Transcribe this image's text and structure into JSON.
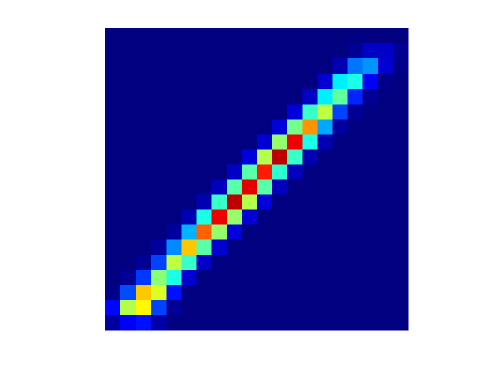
{
  "chart_data": {
    "type": "heatmap",
    "colormap": "jet",
    "zlim": [
      0,
      100
    ],
    "values": [
      [
        0,
        0,
        0,
        0,
        0,
        0,
        0,
        0,
        0,
        0,
        0,
        0,
        0,
        0,
        0,
        0,
        0,
        0,
        0,
        0
      ],
      [
        0,
        0,
        0,
        0,
        0,
        0,
        0,
        0,
        0,
        0,
        0,
        0,
        0,
        0,
        0,
        0,
        2,
        7,
        7,
        2
      ],
      [
        0,
        0,
        0,
        0,
        0,
        0,
        0,
        0,
        0,
        0,
        0,
        0,
        0,
        0,
        0,
        5,
        24,
        27,
        8,
        1
      ],
      [
        0,
        0,
        0,
        0,
        0,
        0,
        0,
        0,
        0,
        0,
        0,
        0,
        0,
        0,
        8,
        36,
        40,
        12,
        1,
        0
      ],
      [
        0,
        0,
        0,
        0,
        0,
        0,
        0,
        0,
        0,
        0,
        0,
        0,
        0,
        7,
        36,
        47,
        16,
        2,
        0,
        0
      ],
      [
        0,
        0,
        0,
        0,
        0,
        0,
        0,
        0,
        0,
        0,
        0,
        0,
        9,
        43,
        56,
        19,
        2,
        0,
        0,
        0
      ],
      [
        0,
        0,
        0,
        0,
        0,
        0,
        0,
        0,
        0,
        0,
        0,
        9,
        49,
        73,
        29,
        3,
        0,
        0,
        0,
        0
      ],
      [
        0,
        0,
        0,
        0,
        0,
        0,
        0,
        0,
        0,
        0,
        8,
        52,
        89,
        40,
        5,
        0,
        0,
        0,
        0,
        0
      ],
      [
        0,
        0,
        0,
        0,
        0,
        0,
        0,
        0,
        0,
        9,
        55,
        94,
        43,
        5,
        0,
        0,
        0,
        0,
        0,
        0
      ],
      [
        0,
        0,
        0,
        0,
        0,
        0,
        0,
        0,
        7,
        46,
        85,
        42,
        6,
        0,
        0,
        0,
        0,
        0,
        0,
        0
      ],
      [
        0,
        0,
        0,
        0,
        0,
        0,
        0,
        6,
        46,
        90,
        46,
        6,
        0,
        0,
        0,
        0,
        0,
        0,
        0,
        0
      ],
      [
        0,
        0,
        0,
        0,
        0,
        0,
        5,
        43,
        94,
        55,
        9,
        0,
        0,
        0,
        0,
        0,
        0,
        0,
        0,
        0
      ],
      [
        0,
        0,
        0,
        0,
        0,
        5,
        40,
        89,
        52,
        8,
        0,
        0,
        0,
        0,
        0,
        0,
        0,
        0,
        0,
        0
      ],
      [
        0,
        0,
        0,
        0,
        3,
        30,
        78,
        52,
        9,
        0,
        0,
        0,
        0,
        0,
        0,
        0,
        0,
        0,
        0,
        0
      ],
      [
        0,
        0,
        0,
        3,
        26,
        68,
        46,
        8,
        0,
        0,
        0,
        0,
        0,
        0,
        0,
        0,
        0,
        0,
        0,
        0
      ],
      [
        0,
        0,
        2,
        19,
        56,
        43,
        7,
        0,
        0,
        0,
        0,
        0,
        0,
        0,
        0,
        0,
        0,
        0,
        0,
        0
      ],
      [
        0,
        2,
        18,
        51,
        40,
        8,
        0,
        0,
        0,
        0,
        0,
        0,
        0,
        0,
        0,
        0,
        0,
        0,
        0,
        0
      ],
      [
        1,
        20,
        68,
        59,
        14,
        0,
        0,
        0,
        0,
        0,
        0,
        0,
        0,
        0,
        0,
        0,
        0,
        0,
        0,
        0
      ],
      [
        13,
        55,
        63,
        19,
        2,
        0,
        0,
        0,
        0,
        0,
        0,
        0,
        0,
        0,
        0,
        0,
        0,
        0,
        0,
        0
      ],
      [
        3,
        12,
        14,
        4,
        0,
        0,
        0,
        0,
        0,
        0,
        0,
        0,
        0,
        0,
        0,
        0,
        0,
        0,
        0,
        0
      ]
    ]
  }
}
